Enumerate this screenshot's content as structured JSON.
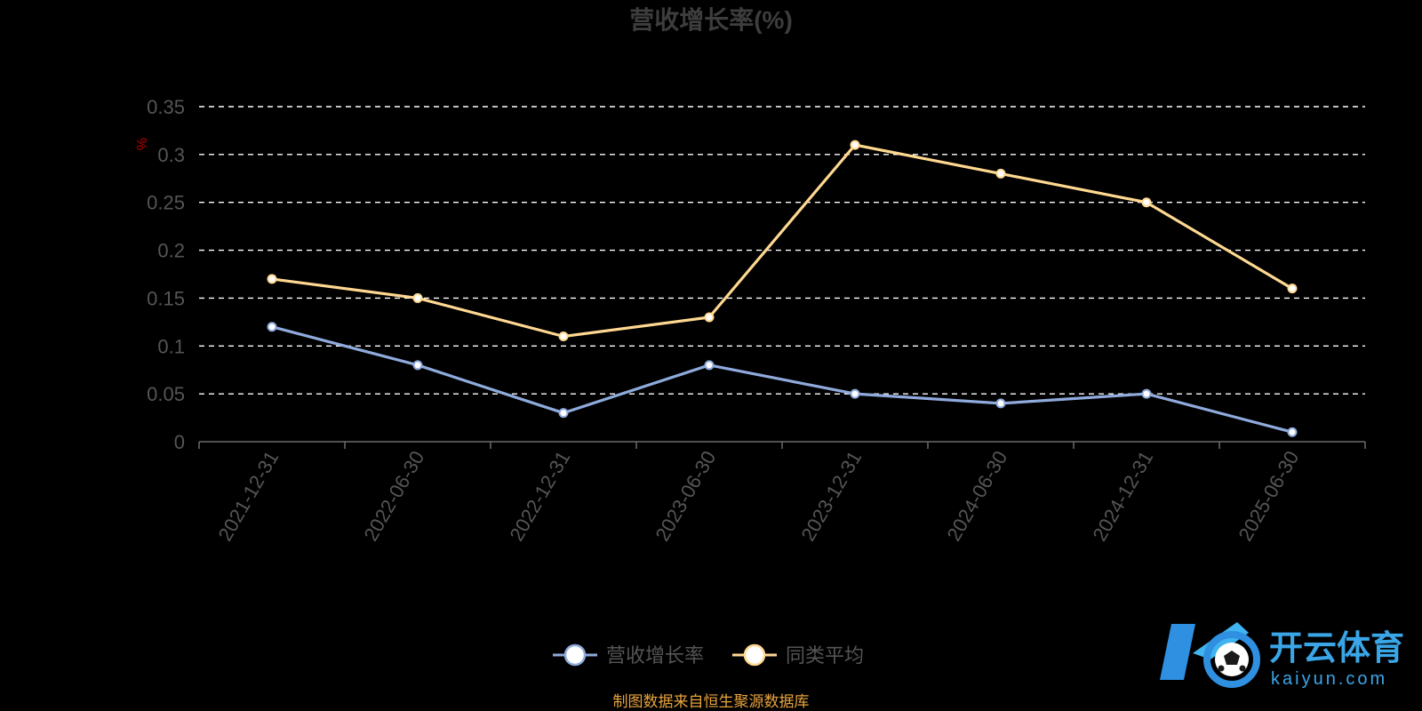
{
  "chart_data": {
    "type": "line",
    "title": "营收增长率(%)",
    "ylabel": "%",
    "xlabel": "",
    "categories": [
      "2021-12-31",
      "2022-06-30",
      "2022-12-31",
      "2023-06-30",
      "2023-12-31",
      "2024-06-30",
      "2024-12-31",
      "2025-06-30"
    ],
    "ylim": [
      0,
      0.35
    ],
    "yticks": [
      "0",
      "0.05",
      "0.1",
      "0.15",
      "0.2",
      "0.25",
      "0.3",
      "0.35"
    ],
    "grid": true,
    "legend_position": "bottom",
    "series": [
      {
        "name": "营收增长率",
        "color": "#8faadc",
        "values": [
          0.12,
          0.08,
          0.03,
          0.08,
          0.05,
          0.04,
          0.05,
          0.01
        ]
      },
      {
        "name": "同类平均",
        "color": "#ffd891",
        "values": [
          0.17,
          0.15,
          0.11,
          0.13,
          0.31,
          0.28,
          0.25,
          0.16
        ]
      }
    ]
  },
  "source_note": "制图数据来自恒生聚源数据库",
  "watermark": {
    "name": "开云体育",
    "domain": "kaiyun.com",
    "icon": "soccer-ball-k-logo-icon"
  }
}
